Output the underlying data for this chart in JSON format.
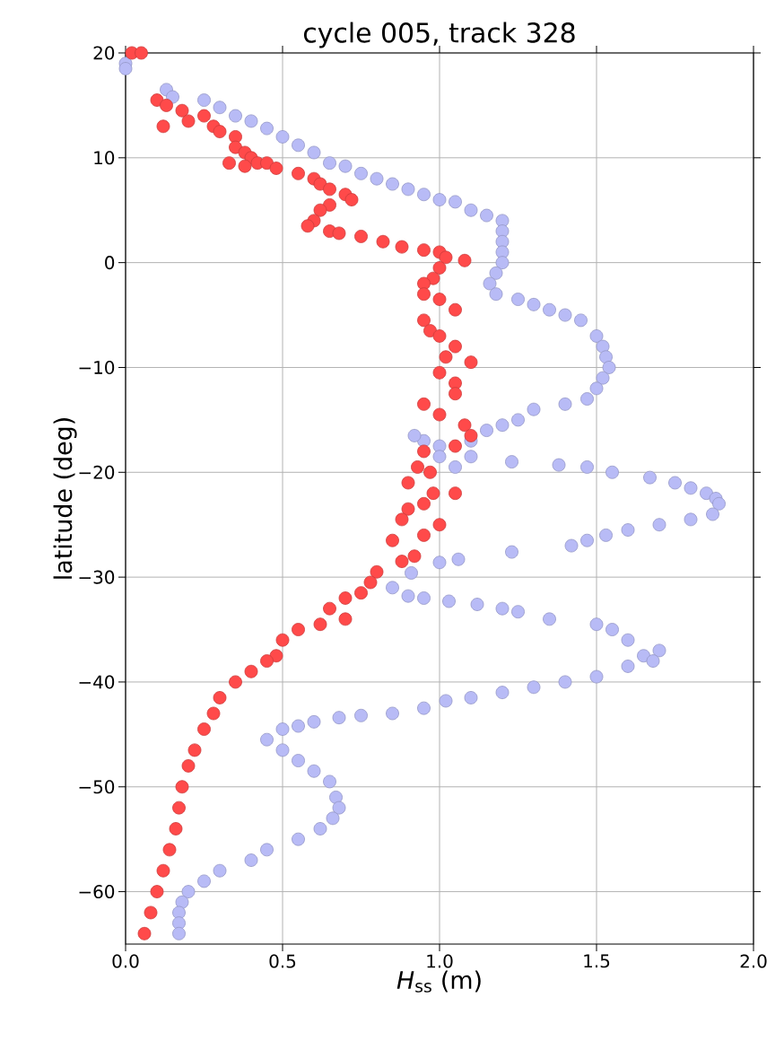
{
  "chart_data": {
    "type": "scatter",
    "title": "cycle 005, track 328",
    "xlabel": "*H*$_{ss}$ (m)",
    "ylabel": "latitude (deg)",
    "xlim": [
      0,
      2.0
    ],
    "ylim": [
      -65,
      20
    ],
    "xticks": [
      {
        "value": 0,
        "label": "0.0"
      },
      0.5,
      {
        "value": 1,
        "label": "1.0"
      },
      1.5,
      {
        "value": 2,
        "label": "2.0"
      }
    ],
    "yticks": [
      {
        "value": -60,
        "label": "−60"
      },
      {
        "value": -50,
        "label": "−50"
      },
      {
        "value": -40,
        "label": "−40"
      },
      {
        "value": -30,
        "label": "−30"
      },
      {
        "value": -20,
        "label": "−20"
      },
      {
        "value": -10,
        "label": "−10"
      },
      0,
      10,
      20
    ],
    "grid": true,
    "series": [
      {
        "color": "#b8bbf6",
        "x": [
          0.0,
          0.0,
          0.13,
          0.15,
          0.25,
          0.3,
          0.35,
          0.4,
          0.45,
          0.5,
          0.55,
          0.6,
          0.65,
          0.7,
          0.75,
          0.8,
          0.85,
          0.9,
          0.95,
          1.0,
          1.05,
          1.1,
          1.15,
          1.2,
          1.2,
          1.2,
          1.2,
          1.2,
          1.18,
          1.16,
          1.18,
          1.25,
          1.3,
          1.35,
          1.4,
          1.45,
          1.5,
          1.52,
          1.53,
          1.54,
          1.52,
          1.5,
          1.47,
          1.4,
          1.3,
          1.25,
          1.2,
          1.15,
          1.1,
          1.0,
          0.95,
          0.92,
          1.0,
          1.05,
          1.1,
          1.23,
          1.38,
          1.47,
          1.55,
          1.67,
          1.75,
          1.8,
          1.85,
          1.88,
          1.89,
          1.87,
          1.8,
          1.7,
          1.6,
          1.53,
          1.47,
          1.42,
          1.23,
          1.06,
          1.0,
          0.91,
          0.85,
          0.9,
          0.95,
          1.03,
          1.12,
          1.2,
          1.25,
          1.35,
          1.5,
          1.55,
          1.6,
          1.65,
          1.7,
          1.68,
          1.6,
          1.5,
          1.4,
          1.3,
          1.2,
          1.1,
          1.02,
          0.95,
          0.85,
          0.75,
          0.68,
          0.6,
          0.55,
          0.5,
          0.45,
          0.5,
          0.55,
          0.6,
          0.65,
          0.67,
          0.68,
          0.66,
          0.62,
          0.55,
          0.45,
          0.4,
          0.3,
          0.25,
          0.2,
          0.18,
          0.17,
          0.17,
          0.17
        ],
        "values": [
          19,
          18.5,
          16.5,
          15.8,
          15.5,
          14.8,
          14,
          13.5,
          12.8,
          12,
          11.2,
          10.5,
          9.5,
          9.2,
          8.5,
          8,
          7.5,
          7,
          6.5,
          6,
          5.8,
          5,
          4.5,
          4,
          3,
          2,
          1,
          0,
          -1,
          -2,
          -3,
          -3.5,
          -4,
          -4.5,
          -5,
          -5.5,
          -7,
          -8,
          -9,
          -10,
          -11,
          -12,
          -13,
          -13.5,
          -14,
          -15,
          -15.5,
          -16,
          -17,
          -17.5,
          -17,
          -16.5,
          -18.5,
          -19.5,
          -18.5,
          -19,
          -19.3,
          -19.5,
          -20,
          -20.5,
          -21,
          -21.5,
          -22,
          -22.5,
          -23,
          -24,
          -24.5,
          -25,
          -25.5,
          -26,
          -26.5,
          -27,
          -27.6,
          -28.3,
          -28.6,
          -29.6,
          -31,
          -31.8,
          -32,
          -32.3,
          -32.6,
          -33,
          -33.3,
          -34,
          -34.5,
          -35,
          -36,
          -37.5,
          -37,
          -38,
          -38.5,
          -39.5,
          -40,
          -40.5,
          -41,
          -41.5,
          -41.8,
          -42.5,
          -43,
          -43.2,
          -43.4,
          -43.8,
          -44.2,
          -44.5,
          -45.5,
          -46.5,
          -47.5,
          -48.5,
          -49.5,
          -51,
          -52,
          -53,
          -54,
          -55,
          -56,
          -57,
          -58,
          -59,
          -60,
          -61,
          -62,
          -63,
          -64
        ]
      },
      {
        "color": "#ff4a4a",
        "x": [
          0.02,
          0.05,
          0.1,
          0.13,
          0.18,
          0.2,
          0.12,
          0.25,
          0.28,
          0.3,
          0.35,
          0.35,
          0.38,
          0.4,
          0.42,
          0.33,
          0.38,
          0.45,
          0.48,
          0.55,
          0.6,
          0.62,
          0.65,
          0.7,
          0.72,
          0.65,
          0.62,
          0.6,
          0.58,
          0.65,
          0.68,
          0.75,
          0.82,
          0.88,
          0.95,
          1.0,
          1.02,
          1.08,
          1.0,
          0.98,
          0.95,
          0.95,
          1.0,
          1.05,
          0.95,
          0.97,
          1.0,
          1.05,
          1.02,
          1.1,
          1.0,
          1.05,
          1.05,
          0.95,
          1.0,
          1.08,
          1.1,
          1.05,
          0.95,
          0.93,
          0.97,
          0.9,
          0.98,
          1.05,
          0.95,
          0.9,
          0.88,
          1.0,
          0.95,
          0.85,
          0.92,
          0.88,
          0.8,
          0.78,
          0.75,
          0.7,
          0.65,
          0.7,
          0.62,
          0.55,
          0.5,
          0.48,
          0.45,
          0.4,
          0.35,
          0.3,
          0.28,
          0.25,
          0.22,
          0.2,
          0.18,
          0.17,
          0.16,
          0.14,
          0.12,
          0.1,
          0.08,
          0.06
        ],
        "values": [
          20,
          20,
          15.5,
          15,
          14.5,
          13.5,
          13,
          14,
          13,
          12.5,
          12,
          11,
          10.5,
          10,
          9.5,
          9.5,
          9.2,
          9.5,
          9,
          8.5,
          8,
          7.5,
          7,
          6.5,
          6,
          5.5,
          5,
          4,
          3.5,
          3,
          2.8,
          2.5,
          2,
          1.5,
          1.2,
          1,
          0.5,
          0.2,
          -0.5,
          -1.5,
          -2,
          -3,
          -3.5,
          -4.5,
          -5.5,
          -6.5,
          -7,
          -8,
          -9,
          -9.5,
          -10.5,
          -11.5,
          -12.5,
          -13.5,
          -14.5,
          -15.5,
          -16.5,
          -17.5,
          -18,
          -19.5,
          -20,
          -21,
          -22,
          -22,
          -23,
          -23.5,
          -24.5,
          -25,
          -26,
          -26.5,
          -28,
          -28.5,
          -29.5,
          -30.5,
          -31.5,
          -32,
          -33,
          -34,
          -34.5,
          -35,
          -36,
          -37.5,
          -38,
          -39,
          -40,
          -41.5,
          -43,
          -44.5,
          -46.5,
          -48,
          -50,
          -52,
          -54,
          -56,
          -58,
          -60,
          -62,
          -64
        ]
      }
    ]
  }
}
